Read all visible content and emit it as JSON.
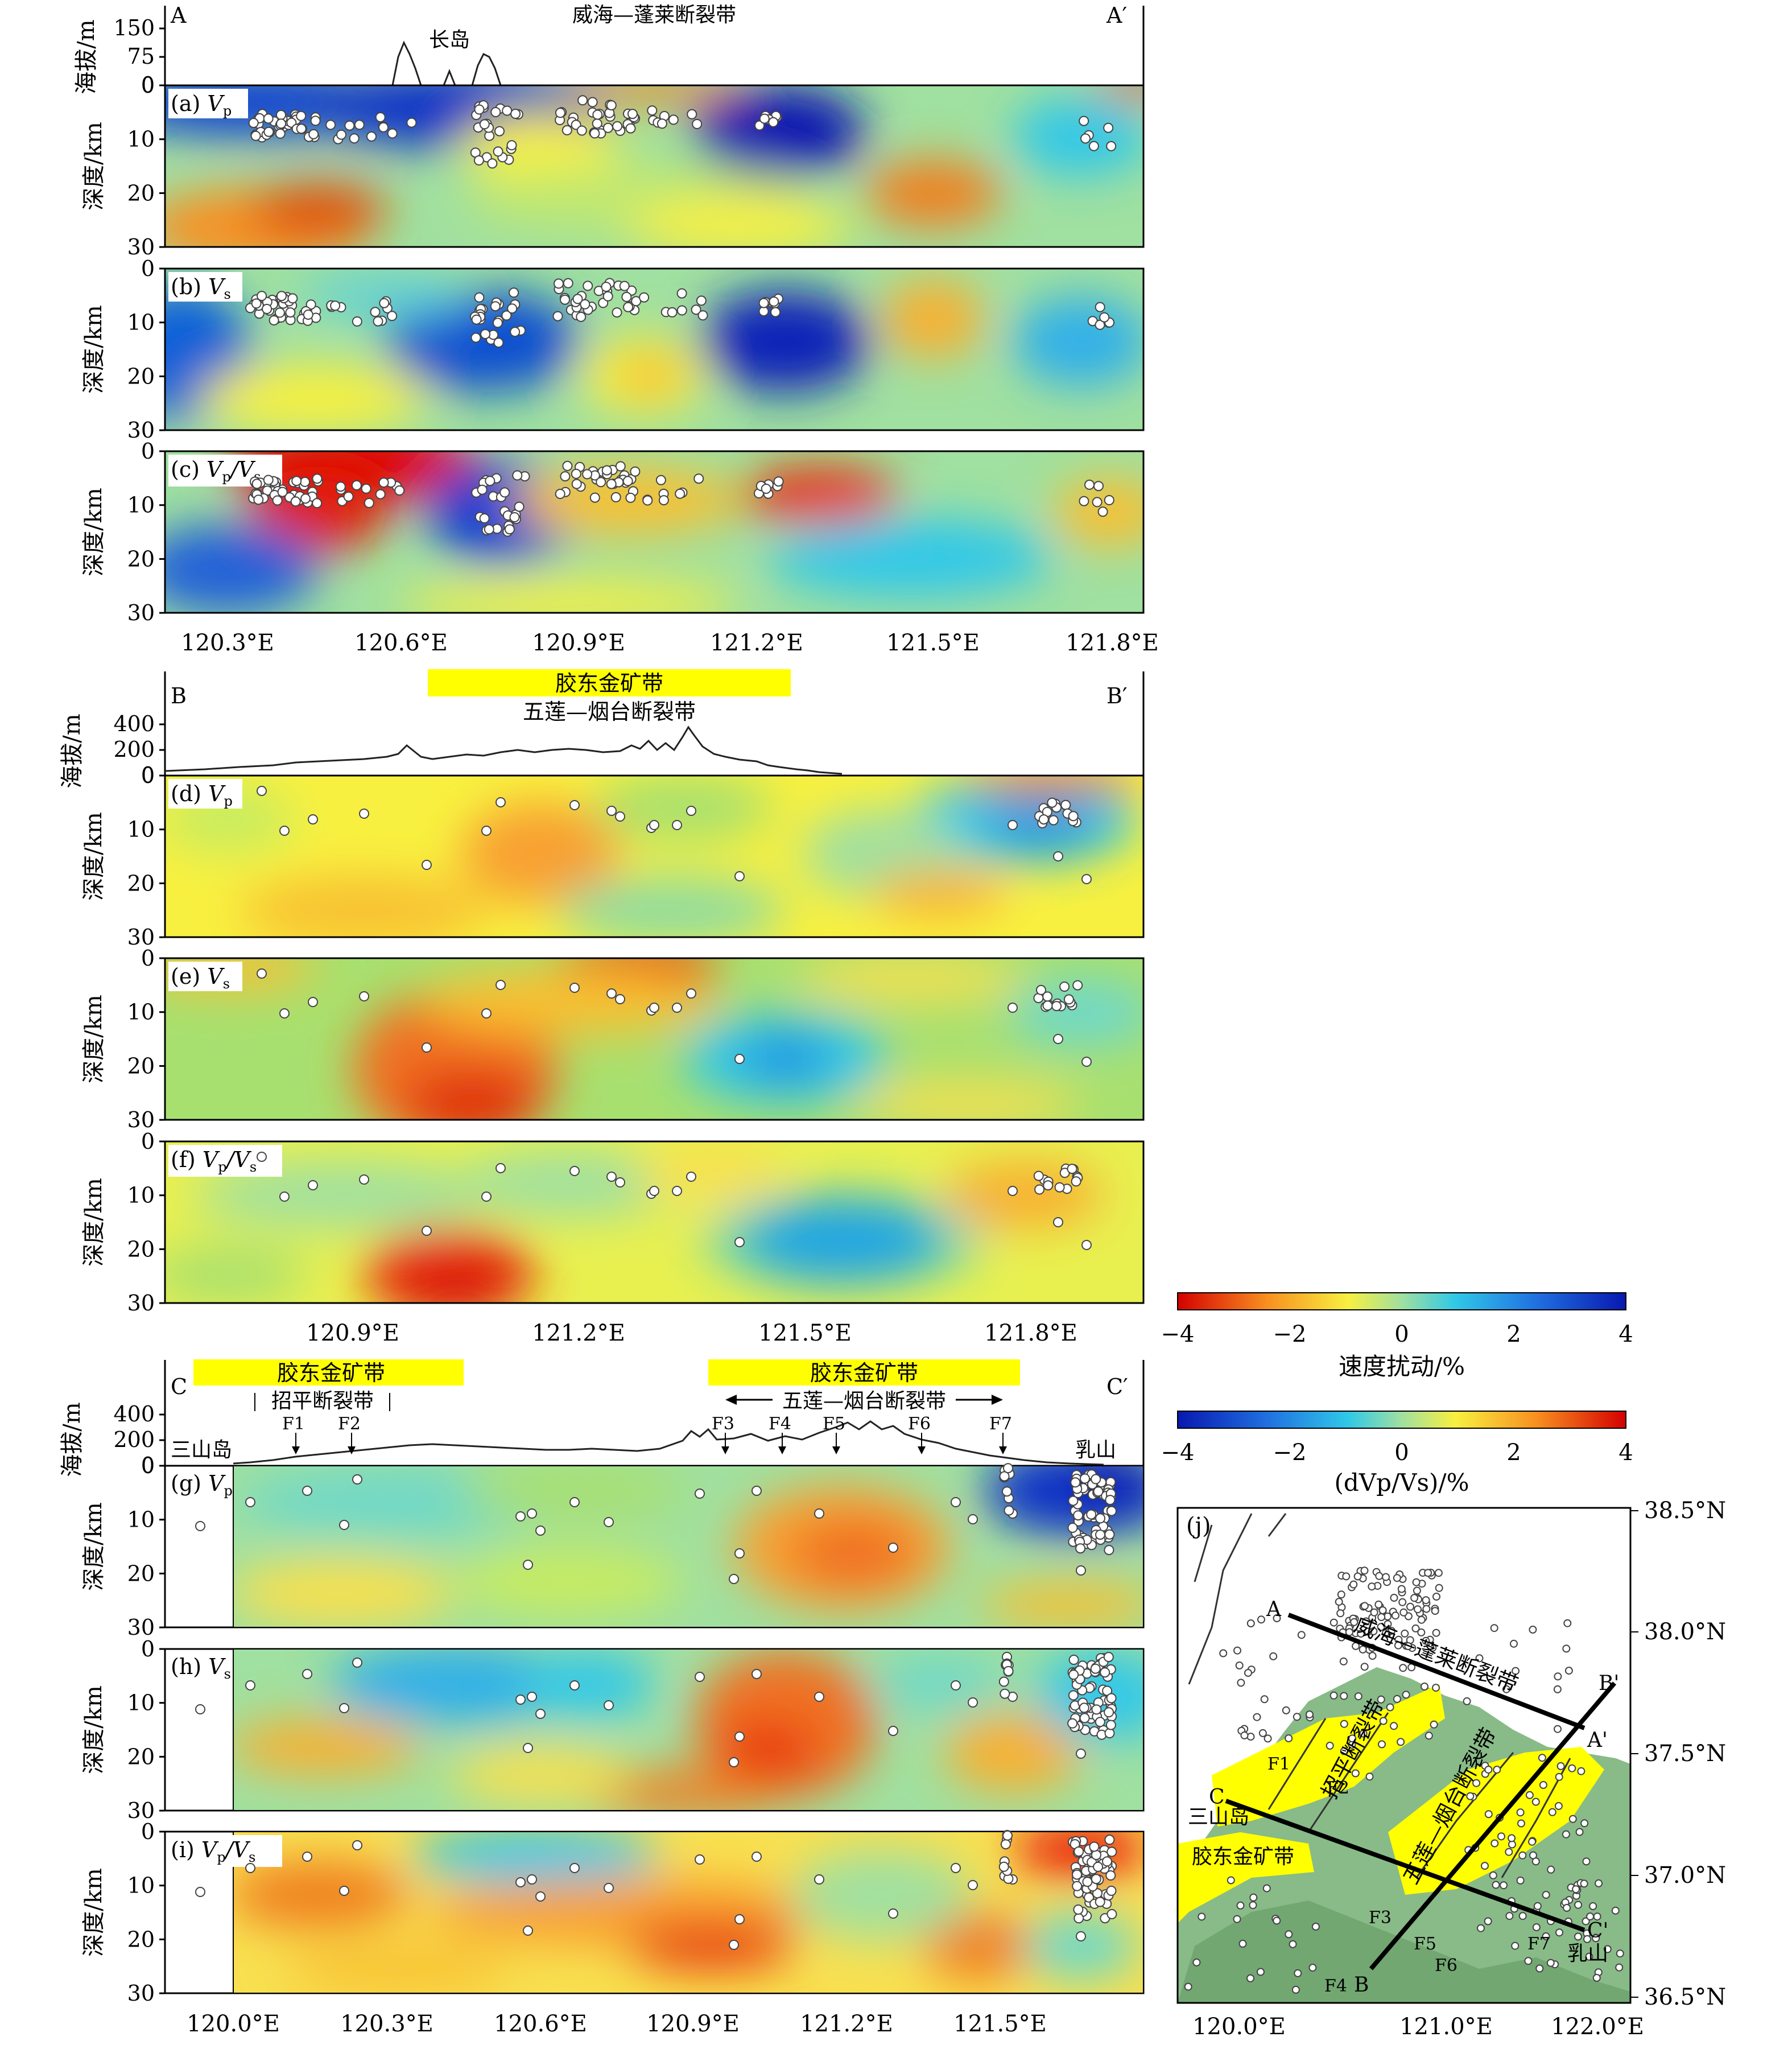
{
  "section_A": {
    "start_label": "A",
    "end_label": "A′",
    "fault_title": "威海—蓬莱断裂带",
    "island_label": "长岛",
    "elev_axis_label": "海拔/m",
    "elev_ticks": [
      "150",
      "75",
      "0"
    ],
    "x_ticks": [
      "120.3°E",
      "120.6°E",
      "120.9°E",
      "121.2°E",
      "121.5°E",
      "121.8°E"
    ],
    "panels": [
      {
        "letter": "(a)",
        "param": "Vp",
        "sub": "p",
        "main": "V"
      },
      {
        "letter": "(b)",
        "param": "Vs",
        "sub": "s",
        "main": "V"
      },
      {
        "letter": "(c)",
        "param": "Vp/Vs",
        "sub": "p",
        "main": "V"
      }
    ]
  },
  "section_B": {
    "start_label": "B",
    "end_label": "B′",
    "belt_label": "胶东金矿带",
    "fault_title": "五莲—烟台断裂带",
    "elev_axis_label": "海拔/m",
    "elev_ticks": [
      "400",
      "200",
      "0"
    ],
    "x_ticks": [
      "120.9°E",
      "121.2°E",
      "121.5°E",
      "121.8°E"
    ],
    "panels": [
      {
        "letter": "(d)",
        "main": "V",
        "sub": "p"
      },
      {
        "letter": "(e)",
        "main": "V",
        "sub": "s"
      },
      {
        "letter": "(f)",
        "main": "V",
        "sub": "p"
      }
    ]
  },
  "section_C": {
    "start_label": "C",
    "end_label": "C′",
    "belt_left": "胶东金矿带",
    "belt_right": "胶东金矿带",
    "fault_left": "招平断裂带",
    "fault_right": "五莲—烟台断裂带",
    "place_left": "三山岛",
    "place_right": "乳山",
    "faults": [
      "F1",
      "F2",
      "F3",
      "F4",
      "F5",
      "F6",
      "F7"
    ],
    "elev_axis_label": "海拔/m",
    "elev_ticks": [
      "400",
      "200",
      "0"
    ],
    "x_ticks": [
      "120.0°E",
      "120.3°E",
      "120.6°E",
      "120.9°E",
      "121.2°E",
      "121.5°E"
    ],
    "panels": [
      {
        "letter": "(g)",
        "main": "V",
        "sub": "p"
      },
      {
        "letter": "(h)",
        "main": "V",
        "sub": "s"
      },
      {
        "letter": "(i)",
        "main": "V",
        "sub": "p"
      }
    ]
  },
  "depth_axis_label": "深度/km",
  "depth_ticks": [
    "0",
    "10",
    "20",
    "30"
  ],
  "colorbar_velocity": {
    "ticks": [
      "−4",
      "−2",
      "0",
      "2",
      "4"
    ],
    "title": "速度扰动/%"
  },
  "colorbar_ratio": {
    "ticks": [
      "−4",
      "−2",
      "0",
      "2",
      "4"
    ],
    "title": "(dVp/Vs)/%"
  },
  "map_j": {
    "letter": "(j)",
    "lat_ticks": [
      "38.5°N",
      "38.0°N",
      "37.5°N",
      "37.0°N",
      "36.5°N"
    ],
    "lon_ticks": [
      "120.0°E",
      "121.0°E",
      "122.0°E"
    ],
    "profile_labels": [
      "A",
      "A'",
      "B",
      "B'",
      "C",
      "C'"
    ],
    "text_labels": [
      "威海—蓬莱断裂带",
      "招平断裂带",
      "五莲—烟台断裂带",
      "三山岛",
      "胶东金矿带",
      "乳山"
    ]
  },
  "colors": {
    "blue": "#1030c8",
    "cyan": "#30c8e8",
    "green": "#a0e0a0",
    "yellow": "#f8f040",
    "orange": "#f89020",
    "red": "#e01010",
    "belt_yellow": "#ffff00"
  }
}
